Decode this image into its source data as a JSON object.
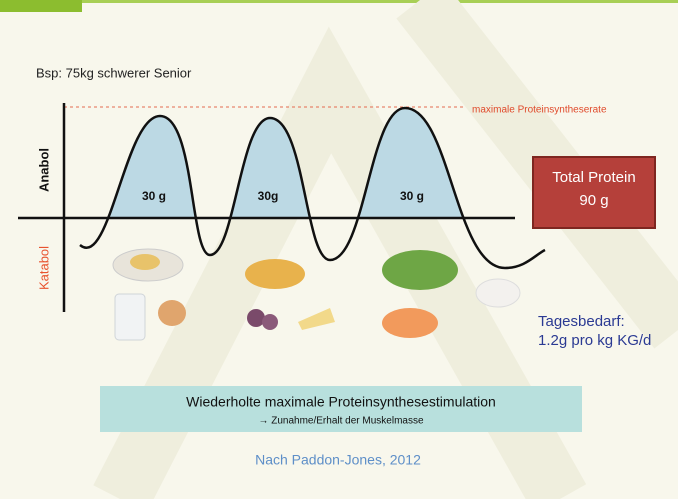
{
  "example": "Bsp: 75kg schwerer Senior",
  "max_line_label": "maximale Proteinsyntheserate",
  "axis": {
    "up": "Anabol",
    "down": "Katabol"
  },
  "peaks": [
    "30 g",
    "30g",
    "30 g"
  ],
  "total": {
    "title": "Total Protein",
    "value": "90 g"
  },
  "daily": {
    "title": "Tagesbedarf:",
    "value": "1.2g pro kg KG/d"
  },
  "banner": {
    "title": "Wiederholte maximale Proteinsynthesestimulation",
    "subtitle": "→ Zunahme/Erhalt der Muskelmasse"
  },
  "source": "Nach Paddon-Jones, 2012"
}
